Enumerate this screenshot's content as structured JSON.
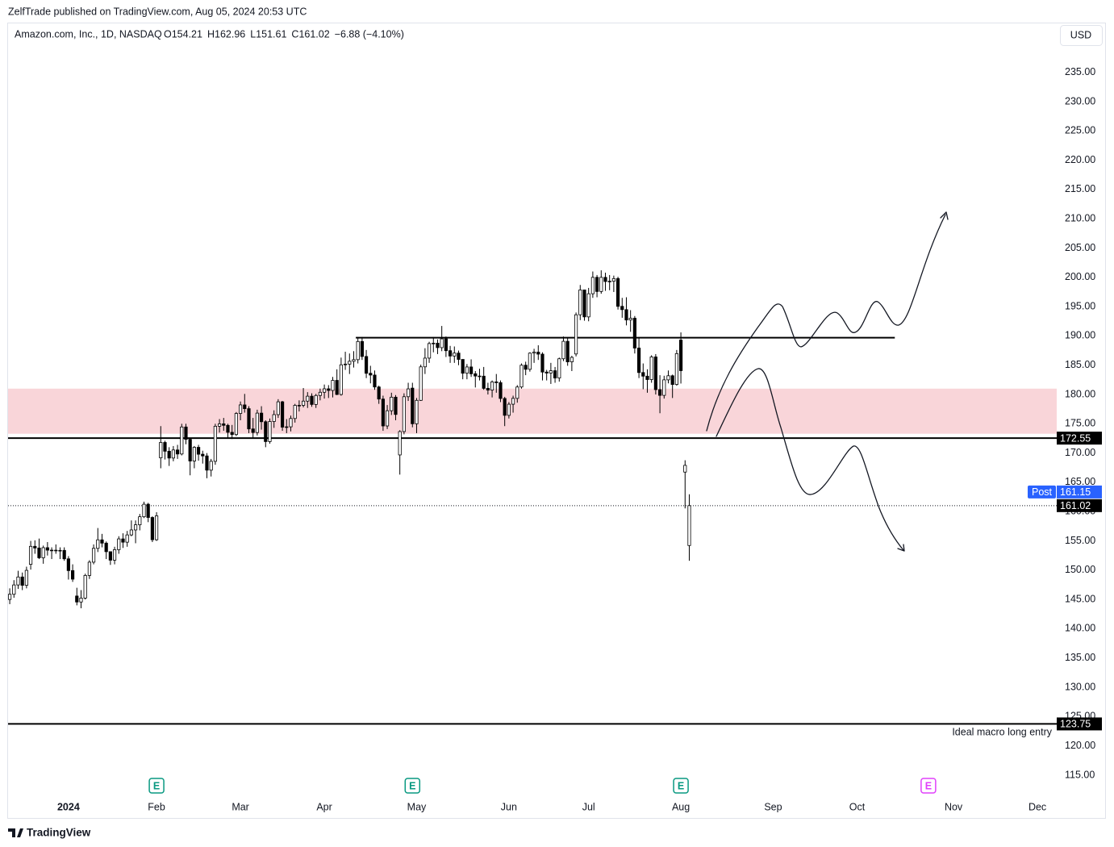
{
  "header": {
    "publisher": "ZelfTrade published on TradingView.com, Aug 05, 2024 20:53 UTC",
    "symbol": "Amazon.com, Inc., 1D, NASDAQ",
    "ohlc": [
      "O154.21",
      "H162.96",
      "L151.61",
      "C161.02",
      "−6.88 (−4.10%)"
    ],
    "currency": "USD"
  },
  "chart_data": {
    "type": "candlestick",
    "open": [
      145.0,
      145.89,
      147.48,
      148.84,
      147.42,
      151.0,
      154.07,
      153.79,
      152.12,
      153.84,
      153.42,
      153.41,
      153.34,
      153.38,
      151.94,
      149.93,
      145.59,
      144.57,
      145.24,
      149.1,
      151.37,
      153.73,
      155.18,
      154.62,
      153.16,
      151.71,
      153.5,
      155.34,
      154.78,
      156.02,
      156.87,
      157.75,
      159.12,
      161.26,
      159.0,
      155.2,
      169.19,
      171.81,
      170.31,
      169.15,
      170.53,
      169.84,
      174.45,
      172.34,
      168.64,
      170.98,
      169.8,
      169.51,
      167.08,
      168.59,
      174.58,
      174.99,
      174.73,
      173.54,
      173.16,
      176.76,
      178.22,
      177.58,
      174.12,
      173.51,
      176.82,
      175.35,
      171.96,
      175.39,
      176.56,
      178.75,
      174.42,
      174.48,
      175.9,
      178.15,
      178.15,
      178.87,
      179.71,
      178.3,
      179.83,
      180.38,
      180.97,
      180.69,
      182.41,
      180.0,
      185.07,
      185.19,
      185.67,
      185.95,
      189.05,
      186.49,
      183.62,
      183.32,
      181.28,
      179.22,
      174.63,
      177.23,
      179.54,
      169.68,
      173.67,
      179.62,
      181.09,
      175.0,
      179.0,
      184.72,
      186.21,
      188.7,
      188.76,
      188.0,
      189.5,
      187.48,
      186.57,
      187.07,
      185.99,
      183.63,
      184.7,
      183.54,
      183.15,
      183.13,
      181.05,
      180.75,
      182.15,
      182.02,
      179.32,
      176.44,
      178.34,
      179.34,
      181.28,
      185.0,
      184.3,
      187.06,
      187.23,
      186.89,
      183.83,
      183.66,
      184.06,
      182.81,
      186.1,
      189.08,
      185.57,
      186.92,
      193.61,
      197.85,
      193.25,
      197.2,
      200.0,
      197.59,
      200.0,
      199.29,
      199.34,
      199.79,
      195.05,
      194.49,
      192.72,
      193.02,
      187.93,
      183.75,
      183.13,
      182.55,
      186.41,
      180.83,
      179.85,
      182.5,
      183.2,
      181.71,
      189.29,
      166.75,
      154.21
    ],
    "high": [
      146.9,
      148.3,
      149.9,
      149.6,
      150.6,
      155.0,
      155.1,
      155.4,
      154.2,
      154.8,
      153.9,
      154.4,
      153.9,
      153.9,
      152.4,
      151.0,
      147.0,
      146.6,
      149.4,
      151.7,
      154.4,
      157.2,
      156.2,
      154.9,
      153.2,
      154.0,
      155.8,
      156.3,
      156.7,
      158.5,
      158.5,
      159.6,
      161.7,
      161.5,
      159.2,
      159.9,
      174.6,
      172.1,
      171.0,
      171.2,
      171.4,
      175.0,
      175.0,
      172.6,
      171.2,
      171.4,
      170.4,
      170.0,
      169.0,
      175.0,
      175.8,
      176.0,
      175.0,
      174.8,
      177.0,
      178.8,
      180.1,
      178.0,
      176.0,
      177.4,
      178.0,
      175.6,
      175.9,
      177.3,
      179.2,
      178.9,
      175.8,
      176.4,
      178.4,
      179.0,
      181.1,
      180.4,
      180.2,
      180.1,
      181.0,
      181.7,
      181.6,
      183.0,
      184.3,
      186.3,
      187.3,
      187.0,
      187.4,
      189.8,
      189.8,
      187.6,
      184.9,
      184.1,
      181.5,
      179.8,
      178.2,
      180.3,
      179.9,
      173.9,
      180.2,
      182.0,
      182.0,
      179.4,
      185.1,
      187.9,
      189.0,
      189.8,
      189.4,
      191.7,
      189.9,
      188.3,
      188.2,
      187.5,
      186.0,
      185.2,
      186.0,
      184.0,
      184.4,
      184.7,
      182.0,
      182.4,
      183.5,
      182.4,
      179.6,
      178.7,
      179.8,
      181.6,
      185.3,
      185.6,
      187.2,
      187.8,
      188.4,
      187.2,
      184.2,
      185.4,
      184.7,
      186.3,
      189.9,
      189.7,
      186.6,
      194.0,
      198.7,
      197.9,
      198.2,
      201.0,
      200.4,
      201.2,
      200.8,
      200.4,
      200.3,
      200.1,
      196.5,
      196.6,
      194.4,
      193.4,
      189.7,
      185.3,
      184.3,
      186.7,
      186.9,
      183.3,
      183.2,
      184.1,
      183.4,
      187.6,
      190.6,
      168.77,
      162.96
    ],
    "low": [
      144.2,
      145.3,
      146.8,
      146.6,
      146.9,
      150.1,
      152.8,
      151.9,
      151.1,
      152.5,
      151.9,
      152.8,
      151.9,
      151.6,
      148.4,
      148.0,
      144.0,
      143.5,
      145.0,
      148.5,
      151.0,
      153.1,
      153.9,
      151.9,
      150.9,
      151.0,
      152.8,
      153.8,
      154.0,
      155.8,
      154.6,
      156.8,
      158.9,
      158.2,
      154.8,
      155.0,
      167.4,
      168.9,
      167.8,
      168.6,
      169.0,
      169.6,
      171.5,
      166.2,
      167.4,
      168.7,
      168.2,
      165.7,
      166.0,
      168.0,
      173.5,
      173.8,
      172.6,
      172.4,
      172.9,
      175.6,
      176.9,
      173.4,
      172.5,
      173.0,
      174.0,
      171.0,
      171.6,
      174.3,
      176.0,
      173.8,
      173.4,
      173.7,
      175.2,
      177.1,
      177.8,
      177.7,
      177.9,
      177.7,
      179.0,
      179.3,
      179.4,
      179.5,
      179.9,
      179.8,
      184.2,
      183.5,
      184.6,
      185.3,
      185.9,
      182.8,
      181.9,
      180.8,
      178.4,
      173.8,
      174.1,
      176.5,
      175.6,
      166.32,
      173.2,
      178.9,
      174.4,
      173.4,
      178.9,
      183.5,
      185.4,
      187.2,
      186.9,
      187.4,
      186.4,
      185.4,
      185.4,
      185.0,
      182.6,
      182.6,
      183.0,
      181.2,
      182.4,
      180.8,
      180.0,
      179.5,
      180.3,
      178.7,
      174.6,
      175.9,
      176.9,
      178.6,
      181.0,
      183.3,
      183.9,
      185.4,
      185.9,
      182.4,
      182.4,
      181.8,
      182.0,
      182.2,
      185.7,
      184.9,
      184.0,
      186.5,
      192.7,
      192.6,
      192.5,
      196.5,
      196.6,
      197.2,
      197.7,
      197.8,
      197.5,
      194.5,
      193.1,
      191.8,
      190.7,
      187.0,
      182.8,
      180.9,
      180.3,
      182.0,
      180.0,
      176.8,
      179.3,
      181.9,
      179.4,
      181.5,
      181.87,
      160.55,
      151.61
    ],
    "close": [
      145.89,
      147.48,
      148.84,
      147.42,
      149.97,
      154.07,
      153.79,
      152.12,
      153.84,
      153.42,
      153.41,
      153.34,
      153.38,
      151.94,
      149.93,
      148.47,
      144.57,
      145.24,
      149.1,
      151.37,
      153.73,
      155.18,
      154.62,
      153.16,
      151.71,
      153.5,
      155.34,
      154.78,
      156.02,
      156.87,
      157.75,
      159.12,
      161.26,
      159.0,
      155.2,
      159.28,
      171.81,
      170.31,
      169.15,
      170.53,
      169.84,
      174.45,
      172.34,
      168.64,
      170.98,
      169.8,
      169.51,
      167.08,
      168.59,
      174.58,
      174.99,
      174.73,
      173.54,
      173.16,
      176.76,
      178.22,
      177.58,
      174.12,
      173.51,
      176.82,
      175.35,
      171.96,
      175.39,
      176.56,
      178.75,
      174.42,
      174.48,
      175.9,
      178.15,
      178.15,
      178.87,
      179.71,
      178.3,
      179.83,
      180.38,
      180.97,
      180.69,
      182.41,
      180.0,
      185.07,
      185.19,
      185.67,
      185.95,
      189.05,
      186.49,
      183.62,
      183.32,
      181.28,
      179.22,
      174.63,
      177.23,
      179.54,
      176.59,
      173.67,
      179.62,
      180.96,
      175.0,
      179.0,
      184.72,
      186.21,
      188.7,
      188.76,
      188.0,
      189.5,
      187.48,
      186.57,
      187.07,
      185.99,
      183.63,
      184.7,
      183.54,
      183.15,
      183.13,
      181.05,
      180.75,
      182.15,
      182.02,
      179.32,
      176.44,
      178.34,
      179.34,
      181.28,
      185.0,
      184.3,
      187.06,
      187.23,
      186.89,
      183.83,
      183.66,
      184.06,
      182.81,
      186.1,
      189.08,
      185.57,
      186.34,
      193.61,
      197.85,
      193.25,
      197.2,
      200.0,
      197.59,
      200.0,
      199.29,
      199.34,
      199.79,
      195.05,
      194.49,
      192.72,
      193.02,
      187.93,
      183.75,
      183.13,
      182.55,
      186.41,
      180.83,
      179.85,
      182.5,
      183.2,
      181.71,
      186.98,
      184.07,
      167.9,
      161.02
    ],
    "up_color": "#ffffff",
    "down_color": "#000000",
    "border_color": "#000000",
    "xlim": [
      -0.4,
      249.6
    ],
    "xticks": [
      {
        "value": 14,
        "label": "2024"
      },
      {
        "value": 35,
        "label": "Feb"
      },
      {
        "value": 55,
        "label": "Mar"
      },
      {
        "value": 75,
        "label": "Apr"
      },
      {
        "value": 97,
        "label": "May"
      },
      {
        "value": 119,
        "label": "Jun"
      },
      {
        "value": 138,
        "label": "Jul"
      },
      {
        "value": 160,
        "label": "Aug"
      },
      {
        "value": 182,
        "label": "Sep"
      },
      {
        "value": 202,
        "label": "Oct"
      },
      {
        "value": 225,
        "label": "Nov"
      },
      {
        "value": 245,
        "label": "Dec"
      }
    ],
    "ylim": [
      111.0,
      243.5
    ],
    "yticks": [
      {
        "value": 115,
        "label": "115.00"
      },
      {
        "value": 120,
        "label": "120.00"
      },
      {
        "value": 125,
        "label": "125.00"
      },
      {
        "value": 130,
        "label": "130.00"
      },
      {
        "value": 135,
        "label": "135.00"
      },
      {
        "value": 140,
        "label": "140.00"
      },
      {
        "value": 145,
        "label": "145.00"
      },
      {
        "value": 150,
        "label": "150.00"
      },
      {
        "value": 155,
        "label": "155.00"
      },
      {
        "value": 160,
        "label": "160.00"
      },
      {
        "value": 165,
        "label": "165.00"
      },
      {
        "value": 170,
        "label": "170.00"
      },
      {
        "value": 175,
        "label": "175.00"
      },
      {
        "value": 180,
        "label": "180.00"
      },
      {
        "value": 185,
        "label": "185.00"
      },
      {
        "value": 190,
        "label": "190.00"
      },
      {
        "value": 195,
        "label": "195.00"
      },
      {
        "value": 200,
        "label": "200.00"
      },
      {
        "value": 205,
        "label": "205.00"
      },
      {
        "value": 210,
        "label": "210.00"
      },
      {
        "value": 215,
        "label": "215.00"
      },
      {
        "value": 220,
        "label": "220.00"
      },
      {
        "value": 225,
        "label": "225.00"
      },
      {
        "value": 230,
        "label": "230.00"
      },
      {
        "value": 235,
        "label": "235.00"
      }
    ],
    "grid": false,
    "zone": [
      173.3,
      181.0
    ],
    "zone_color": "#f9d5d9",
    "resistance": {
      "value": 189.7,
      "from": 82.5,
      "to": 211
    },
    "levels": [
      {
        "value": 172.55
      },
      {
        "value": 123.75,
        "note": "Ideal macro long entry"
      }
    ],
    "post_market": {
      "label": "Post",
      "value": 161.15,
      "color": "#2962ff"
    },
    "earnings": [
      {
        "label": "E",
        "x": 35,
        "color": "#089981"
      },
      {
        "label": "E",
        "x": 96,
        "color": "#089981"
      },
      {
        "label": "E",
        "x": 160,
        "color": "#089981"
      },
      {
        "label": "E",
        "x": 219,
        "color": "#e040fb"
      }
    ]
  },
  "footer": {
    "brand": "TradingView"
  }
}
